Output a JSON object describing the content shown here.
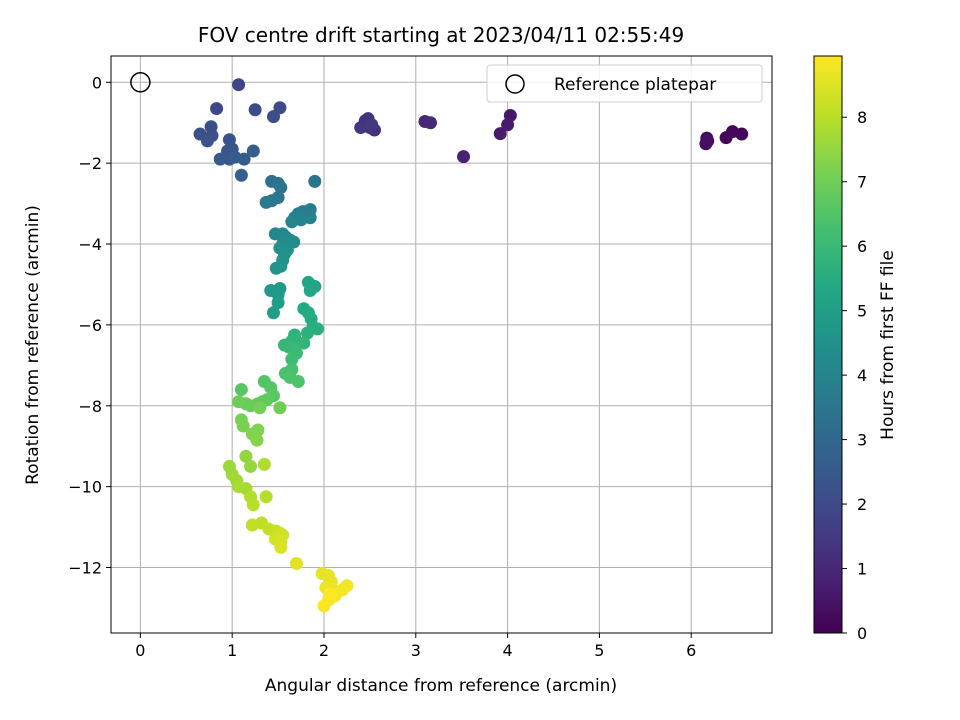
{
  "chart_data": {
    "type": "scatter",
    "title": "FOV centre drift starting at 2023/04/11 02:55:49",
    "xlabel": "Angular distance from reference (arcmin)",
    "ylabel": "Rotation from reference (arcmin)",
    "xlim": [
      -0.32,
      6.88
    ],
    "ylim": [
      -13.62,
      0.65
    ],
    "xticks": [
      "0",
      "1",
      "2",
      "3",
      "4",
      "5",
      "6"
    ],
    "yticks": [
      "0",
      "−2",
      "−4",
      "−6",
      "−8",
      "−10",
      "−12"
    ],
    "grid": true,
    "legend": {
      "label": "Reference platepar",
      "placement": "top-right"
    },
    "reference_point": {
      "x": 0,
      "y": 0
    },
    "colorbar": {
      "label": "Hours from first FF file",
      "colormap": "viridis",
      "range": [
        0,
        8.95
      ],
      "ticks": [
        "0",
        "1",
        "2",
        "3",
        "4",
        "5",
        "6",
        "7",
        "8"
      ]
    },
    "points": [
      {
        "x": 6.55,
        "y": -1.28,
        "h": 0.1
      },
      {
        "x": 6.45,
        "y": -1.22,
        "h": 0.15
      },
      {
        "x": 6.38,
        "y": -1.37,
        "h": 0.2
      },
      {
        "x": 6.17,
        "y": -1.38,
        "h": 0.25
      },
      {
        "x": 6.16,
        "y": -1.52,
        "h": 0.3
      },
      {
        "x": 6.18,
        "y": -1.45,
        "h": 0.35
      },
      {
        "x": 4.03,
        "y": -0.82,
        "h": 0.6
      },
      {
        "x": 4.0,
        "y": -1.05,
        "h": 0.65
      },
      {
        "x": 3.92,
        "y": -1.27,
        "h": 0.7
      },
      {
        "x": 3.52,
        "y": -1.84,
        "h": 0.85
      },
      {
        "x": 3.1,
        "y": -0.97,
        "h": 1.0
      },
      {
        "x": 3.16,
        "y": -1.0,
        "h": 1.05
      },
      {
        "x": 2.55,
        "y": -1.18,
        "h": 1.2
      },
      {
        "x": 2.5,
        "y": -1.12,
        "h": 1.25
      },
      {
        "x": 2.48,
        "y": -0.9,
        "h": 1.3
      },
      {
        "x": 2.45,
        "y": -0.95,
        "h": 1.35
      },
      {
        "x": 2.4,
        "y": -1.12,
        "h": 1.4
      },
      {
        "x": 2.52,
        "y": -1.05,
        "h": 1.45
      },
      {
        "x": 1.07,
        "y": -0.06,
        "h": 1.8
      },
      {
        "x": 0.83,
        "y": -0.65,
        "h": 1.9
      },
      {
        "x": 1.52,
        "y": -0.63,
        "h": 1.95
      },
      {
        "x": 1.25,
        "y": -0.68,
        "h": 2.0
      },
      {
        "x": 1.45,
        "y": -0.85,
        "h": 2.05
      },
      {
        "x": 0.77,
        "y": -1.1,
        "h": 2.1
      },
      {
        "x": 0.78,
        "y": -1.32,
        "h": 2.15
      },
      {
        "x": 0.65,
        "y": -1.28,
        "h": 2.2
      },
      {
        "x": 0.73,
        "y": -1.45,
        "h": 2.25
      },
      {
        "x": 0.97,
        "y": -1.42,
        "h": 2.3
      },
      {
        "x": 1.0,
        "y": -1.65,
        "h": 2.35
      },
      {
        "x": 0.95,
        "y": -1.7,
        "h": 2.4
      },
      {
        "x": 0.97,
        "y": -1.9,
        "h": 2.45
      },
      {
        "x": 0.87,
        "y": -1.9,
        "h": 2.5
      },
      {
        "x": 1.03,
        "y": -1.85,
        "h": 2.55
      },
      {
        "x": 1.13,
        "y": -1.9,
        "h": 2.6
      },
      {
        "x": 1.23,
        "y": -1.7,
        "h": 2.65
      },
      {
        "x": 1.1,
        "y": -2.3,
        "h": 2.7
      },
      {
        "x": 1.43,
        "y": -2.45,
        "h": 3.3
      },
      {
        "x": 1.5,
        "y": -2.5,
        "h": 3.35
      },
      {
        "x": 1.53,
        "y": -2.6,
        "h": 3.4
      },
      {
        "x": 1.9,
        "y": -2.45,
        "h": 3.45
      },
      {
        "x": 1.5,
        "y": -2.85,
        "h": 3.5
      },
      {
        "x": 1.43,
        "y": -2.93,
        "h": 3.55
      },
      {
        "x": 1.37,
        "y": -2.97,
        "h": 3.6
      },
      {
        "x": 1.85,
        "y": -3.15,
        "h": 3.7
      },
      {
        "x": 1.77,
        "y": -3.2,
        "h": 3.75
      },
      {
        "x": 1.72,
        "y": -3.25,
        "h": 3.8
      },
      {
        "x": 1.68,
        "y": -3.35,
        "h": 3.85
      },
      {
        "x": 1.85,
        "y": -3.35,
        "h": 3.9
      },
      {
        "x": 1.75,
        "y": -3.4,
        "h": 3.95
      },
      {
        "x": 1.65,
        "y": -3.45,
        "h": 4.0
      },
      {
        "x": 1.47,
        "y": -3.75,
        "h": 4.1
      },
      {
        "x": 1.55,
        "y": -3.75,
        "h": 4.15
      },
      {
        "x": 1.58,
        "y": -3.82,
        "h": 4.2
      },
      {
        "x": 1.63,
        "y": -3.9,
        "h": 4.25
      },
      {
        "x": 1.67,
        "y": -3.95,
        "h": 4.3
      },
      {
        "x": 1.55,
        "y": -4.0,
        "h": 4.35
      },
      {
        "x": 1.52,
        "y": -4.1,
        "h": 4.4
      },
      {
        "x": 1.6,
        "y": -4.15,
        "h": 4.45
      },
      {
        "x": 1.57,
        "y": -4.25,
        "h": 4.5
      },
      {
        "x": 1.55,
        "y": -4.4,
        "h": 4.55
      },
      {
        "x": 1.48,
        "y": -4.6,
        "h": 4.6
      },
      {
        "x": 1.53,
        "y": -4.55,
        "h": 4.65
      },
      {
        "x": 1.42,
        "y": -5.15,
        "h": 4.75
      },
      {
        "x": 1.52,
        "y": -5.1,
        "h": 4.8
      },
      {
        "x": 1.5,
        "y": -5.25,
        "h": 4.85
      },
      {
        "x": 1.5,
        "y": -5.45,
        "h": 4.9
      },
      {
        "x": 1.45,
        "y": -5.7,
        "h": 4.95
      },
      {
        "x": 1.83,
        "y": -4.95,
        "h": 5.2
      },
      {
        "x": 1.9,
        "y": -5.05,
        "h": 5.25
      },
      {
        "x": 1.85,
        "y": -5.15,
        "h": 5.3
      },
      {
        "x": 1.78,
        "y": -5.6,
        "h": 5.4
      },
      {
        "x": 1.83,
        "y": -5.7,
        "h": 5.45
      },
      {
        "x": 1.86,
        "y": -5.85,
        "h": 5.5
      },
      {
        "x": 1.88,
        "y": -6.05,
        "h": 5.55
      },
      {
        "x": 1.93,
        "y": -6.1,
        "h": 5.6
      },
      {
        "x": 1.82,
        "y": -6.2,
        "h": 5.65
      },
      {
        "x": 1.68,
        "y": -6.25,
        "h": 5.75
      },
      {
        "x": 1.65,
        "y": -6.4,
        "h": 5.8
      },
      {
        "x": 1.78,
        "y": -6.45,
        "h": 5.85
      },
      {
        "x": 1.57,
        "y": -6.5,
        "h": 5.9
      },
      {
        "x": 1.62,
        "y": -6.55,
        "h": 5.95
      },
      {
        "x": 1.68,
        "y": -6.6,
        "h": 6.0
      },
      {
        "x": 1.7,
        "y": -6.7,
        "h": 6.05
      },
      {
        "x": 1.65,
        "y": -6.85,
        "h": 6.1
      },
      {
        "x": 1.65,
        "y": -7.1,
        "h": 6.3
      },
      {
        "x": 1.58,
        "y": -7.2,
        "h": 6.35
      },
      {
        "x": 1.63,
        "y": -7.3,
        "h": 6.4
      },
      {
        "x": 1.72,
        "y": -7.4,
        "h": 6.45
      },
      {
        "x": 1.35,
        "y": -7.4,
        "h": 6.5
      },
      {
        "x": 1.42,
        "y": -7.55,
        "h": 6.55
      },
      {
        "x": 1.1,
        "y": -7.6,
        "h": 6.6
      },
      {
        "x": 1.45,
        "y": -7.75,
        "h": 6.65
      },
      {
        "x": 1.38,
        "y": -7.85,
        "h": 6.7
      },
      {
        "x": 1.33,
        "y": -7.9,
        "h": 6.75
      },
      {
        "x": 1.28,
        "y": -7.95,
        "h": 6.8
      },
      {
        "x": 1.2,
        "y": -8.0,
        "h": 6.85
      },
      {
        "x": 1.15,
        "y": -7.95,
        "h": 6.9
      },
      {
        "x": 1.07,
        "y": -7.9,
        "h": 6.95
      },
      {
        "x": 1.52,
        "y": -8.05,
        "h": 7.0
      },
      {
        "x": 1.3,
        "y": -8.05,
        "h": 7.05
      },
      {
        "x": 1.1,
        "y": -8.35,
        "h": 7.1
      },
      {
        "x": 1.12,
        "y": -8.5,
        "h": 7.15
      },
      {
        "x": 1.28,
        "y": -8.6,
        "h": 7.2
      },
      {
        "x": 1.22,
        "y": -8.7,
        "h": 7.25
      },
      {
        "x": 1.27,
        "y": -8.85,
        "h": 7.3
      },
      {
        "x": 1.15,
        "y": -9.25,
        "h": 7.5
      },
      {
        "x": 1.2,
        "y": -9.5,
        "h": 7.55
      },
      {
        "x": 0.97,
        "y": -9.5,
        "h": 7.6
      },
      {
        "x": 1.0,
        "y": -9.7,
        "h": 7.65
      },
      {
        "x": 1.05,
        "y": -9.85,
        "h": 7.7
      },
      {
        "x": 1.15,
        "y": -10.05,
        "h": 7.75
      },
      {
        "x": 1.07,
        "y": -10.0,
        "h": 7.8
      },
      {
        "x": 1.35,
        "y": -9.45,
        "h": 7.85
      },
      {
        "x": 1.2,
        "y": -10.25,
        "h": 7.9
      },
      {
        "x": 1.37,
        "y": -10.25,
        "h": 7.95
      },
      {
        "x": 1.23,
        "y": -10.45,
        "h": 8.0
      },
      {
        "x": 1.32,
        "y": -10.9,
        "h": 8.05
      },
      {
        "x": 1.22,
        "y": -10.95,
        "h": 8.1
      },
      {
        "x": 1.4,
        "y": -11.05,
        "h": 8.15
      },
      {
        "x": 1.48,
        "y": -11.1,
        "h": 8.2
      },
      {
        "x": 1.52,
        "y": -11.15,
        "h": 8.25
      },
      {
        "x": 1.55,
        "y": -11.2,
        "h": 8.3
      },
      {
        "x": 1.47,
        "y": -11.3,
        "h": 8.35
      },
      {
        "x": 1.53,
        "y": -11.35,
        "h": 8.4
      },
      {
        "x": 1.53,
        "y": -11.5,
        "h": 8.45
      },
      {
        "x": 1.7,
        "y": -11.9,
        "h": 8.55
      },
      {
        "x": 1.98,
        "y": -12.15,
        "h": 8.6
      },
      {
        "x": 2.05,
        "y": -12.2,
        "h": 8.63
      },
      {
        "x": 2.08,
        "y": -12.35,
        "h": 8.66
      },
      {
        "x": 2.02,
        "y": -12.5,
        "h": 8.7
      },
      {
        "x": 2.1,
        "y": -12.55,
        "h": 8.72
      },
      {
        "x": 2.15,
        "y": -12.6,
        "h": 8.75
      },
      {
        "x": 2.25,
        "y": -12.45,
        "h": 8.78
      },
      {
        "x": 2.2,
        "y": -12.55,
        "h": 8.8
      },
      {
        "x": 2.12,
        "y": -12.7,
        "h": 8.83
      },
      {
        "x": 2.05,
        "y": -12.8,
        "h": 8.86
      },
      {
        "x": 2.0,
        "y": -12.95,
        "h": 8.9
      },
      {
        "x": 2.07,
        "y": -12.65,
        "h": 8.93
      }
    ]
  }
}
